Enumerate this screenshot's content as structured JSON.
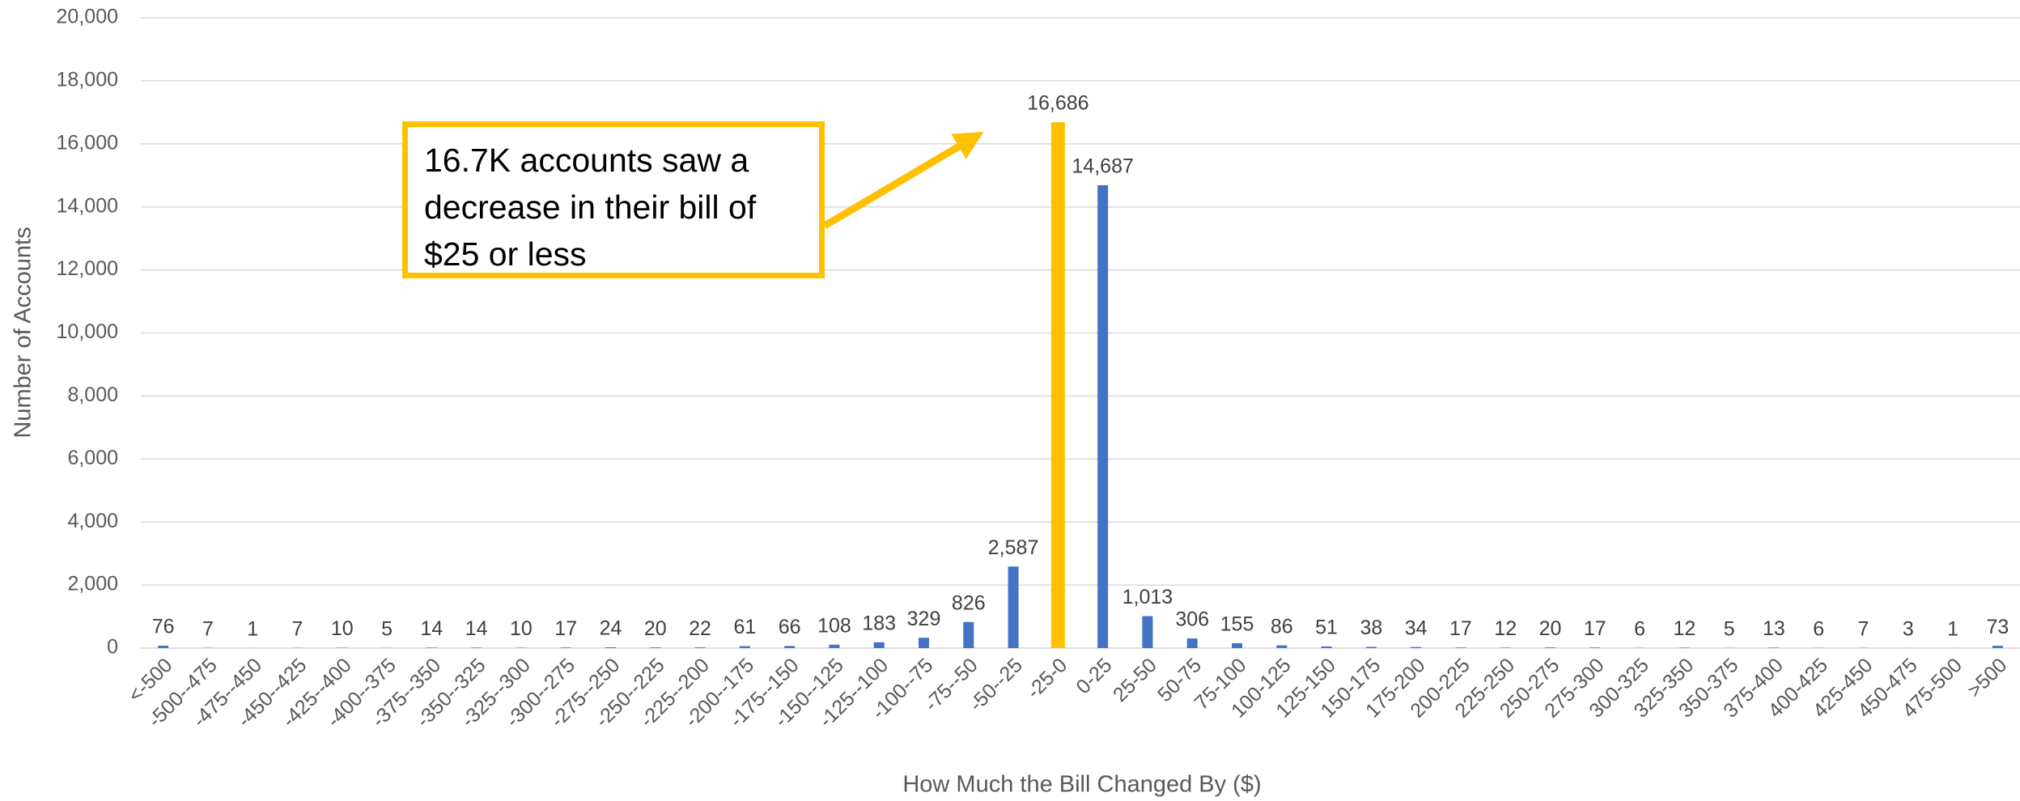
{
  "chart_data": {
    "type": "bar",
    "y_label": "Number of Accounts",
    "x_label": "How Much the Bill Changed By ($)",
    "annotation": "16.7K accounts saw a decrease in their bill of $25 or less",
    "categories": [
      "<-500",
      "-500--475",
      "-475--450",
      "-450--425",
      "-425--400",
      "-400--375",
      "-375--350",
      "-350--325",
      "-325--300",
      "-300--275",
      "-275--250",
      "-250--225",
      "-225--200",
      "-200--175",
      "-175--150",
      "-150--125",
      "-125--100",
      "-100--75",
      "-75--50",
      "-50--25",
      "-25-0",
      "0-25",
      "25-50",
      "50-75",
      "75-100",
      "100-125",
      "125-150",
      "150-175",
      "175-200",
      "200-225",
      "225-250",
      "250-275",
      "275-300",
      "300-325",
      "325-350",
      "350-375",
      "375-400",
      "400-425",
      "425-450",
      "450-475",
      "475-500",
      ">500"
    ],
    "values": [
      76,
      7,
      1,
      7,
      10,
      5,
      14,
      14,
      10,
      17,
      24,
      20,
      22,
      61,
      66,
      108,
      183,
      329,
      826,
      2587,
      16686,
      14687,
      1013,
      306,
      155,
      86,
      51,
      38,
      34,
      17,
      12,
      20,
      17,
      6,
      12,
      5,
      13,
      6,
      7,
      3,
      1,
      73
    ],
    "value_labels": [
      "76",
      "7",
      "1",
      "7",
      "10",
      "5",
      "14",
      "14",
      "10",
      "17",
      "24",
      "20",
      "22",
      "61",
      "66",
      "108",
      "183",
      "329",
      "826",
      "2,587",
      "16,686",
      "14,687",
      "1,013",
      "306",
      "155",
      "86",
      "51",
      "38",
      "34",
      "17",
      "12",
      "20",
      "17",
      "6",
      "12",
      "5",
      "13",
      "6",
      "7",
      "3",
      "1",
      "73"
    ],
    "colors": [
      "#4472c4",
      "#4472c4",
      "#4472c4",
      "#4472c4",
      "#4472c4",
      "#4472c4",
      "#4472c4",
      "#4472c4",
      "#4472c4",
      "#4472c4",
      "#4472c4",
      "#4472c4",
      "#4472c4",
      "#4472c4",
      "#4472c4",
      "#4472c4",
      "#4472c4",
      "#4472c4",
      "#4472c4",
      "#4472c4",
      "#ffc000",
      "#4472c4",
      "#4472c4",
      "#4472c4",
      "#4472c4",
      "#4472c4",
      "#4472c4",
      "#4472c4",
      "#4472c4",
      "#4472c4",
      "#4472c4",
      "#4472c4",
      "#4472c4",
      "#4472c4",
      "#4472c4",
      "#4472c4",
      "#4472c4",
      "#4472c4",
      "#4472c4",
      "#4472c4",
      "#4472c4",
      "#4472c4"
    ],
    "ylim": [
      0,
      20000
    ],
    "yticks": [
      0,
      {
        "value": 2000,
        "label": "2,000"
      },
      {
        "value": 4000,
        "label": "4,000"
      },
      {
        "value": 6000,
        "label": "6,000"
      },
      {
        "value": 8000,
        "label": "8,000"
      },
      {
        "value": 10000,
        "label": "10,000"
      },
      {
        "value": 12000,
        "label": "12,000"
      },
      {
        "value": 14000,
        "label": "14,000"
      },
      {
        "value": 16000,
        "label": "16,000"
      },
      {
        "value": 18000,
        "label": "18,000"
      },
      {
        "value": 20000,
        "label": "20,000"
      }
    ],
    "grid": true
  }
}
